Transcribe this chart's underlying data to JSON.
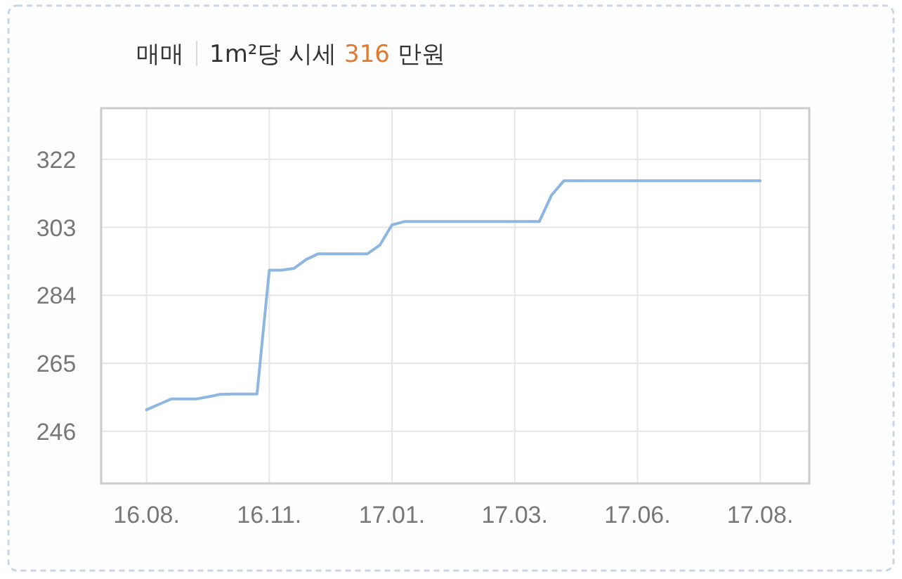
{
  "chart_data": {
    "type": "line",
    "title": "매매",
    "subtitle": "1m²당 시세 316 만원",
    "categories": [
      "16.08.",
      null,
      null,
      null,
      null,
      null,
      null,
      null,
      null,
      null,
      "16.11.",
      null,
      null,
      null,
      null,
      null,
      null,
      null,
      null,
      null,
      "17.01.",
      null,
      null,
      null,
      null,
      null,
      null,
      null,
      null,
      null,
      "17.03.",
      null,
      null,
      null,
      null,
      null,
      null,
      null,
      null,
      null,
      "17.06.",
      null,
      null,
      null,
      null,
      null,
      null,
      null,
      null,
      null,
      "17.08."
    ],
    "series": [
      {
        "color": "#8db6e0",
        "values": [
          252,
          253.5,
          255,
          255,
          255,
          255.6,
          256.3,
          256.4,
          256.4,
          256.4,
          291,
          291,
          291.5,
          294,
          295.6,
          295.6,
          295.6,
          295.6,
          295.6,
          298,
          303.7,
          304.6,
          304.6,
          304.6,
          304.6,
          304.6,
          304.6,
          304.6,
          304.6,
          304.6,
          304.6,
          304.6,
          304.6,
          312,
          316,
          316,
          316,
          316,
          316,
          316,
          316,
          316,
          316,
          316,
          316,
          316,
          316,
          316,
          316,
          316,
          316
        ]
      }
    ],
    "ylim": [
      231.4,
      336.3
    ],
    "yticks": [
      246,
      265,
      284,
      303,
      322
    ],
    "grid": true,
    "marker": "none",
    "line_style": "solid"
  }
}
